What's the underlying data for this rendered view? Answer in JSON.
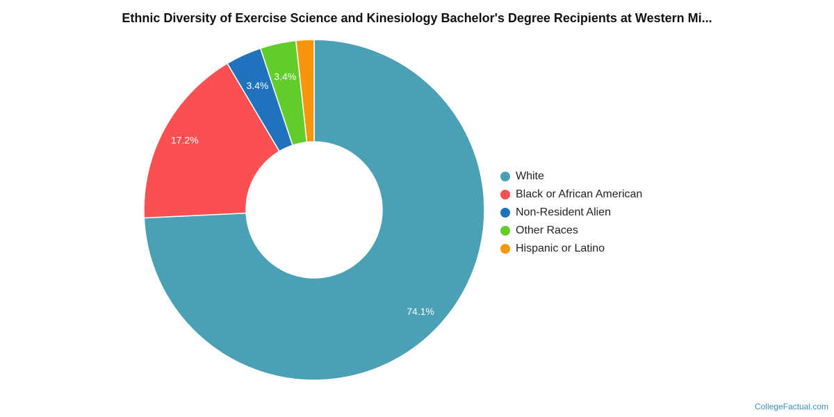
{
  "chart_data": {
    "type": "pie",
    "title": "Ethnic Diversity of Exercise Science and Kinesiology Bachelor's Degree Recipients at Western Mi...",
    "donut": true,
    "legend_position": "right",
    "slices": [
      {
        "label": "White",
        "value": 74.1,
        "display": "74.1%",
        "color": "#4aa0b4"
      },
      {
        "label": "Black or African American",
        "value": 17.2,
        "display": "17.2%",
        "color": "#fb5052"
      },
      {
        "label": "Non-Resident Alien",
        "value": 3.4,
        "display": "3.4%",
        "color": "#1f73bd"
      },
      {
        "label": "Other Races",
        "value": 3.4,
        "display": "3.4%",
        "color": "#62cd2a"
      },
      {
        "label": "Hispanic or Latino",
        "value": 1.7,
        "display": "",
        "color": "#f7960c"
      }
    ]
  },
  "watermark": "CollegeFactual.com"
}
